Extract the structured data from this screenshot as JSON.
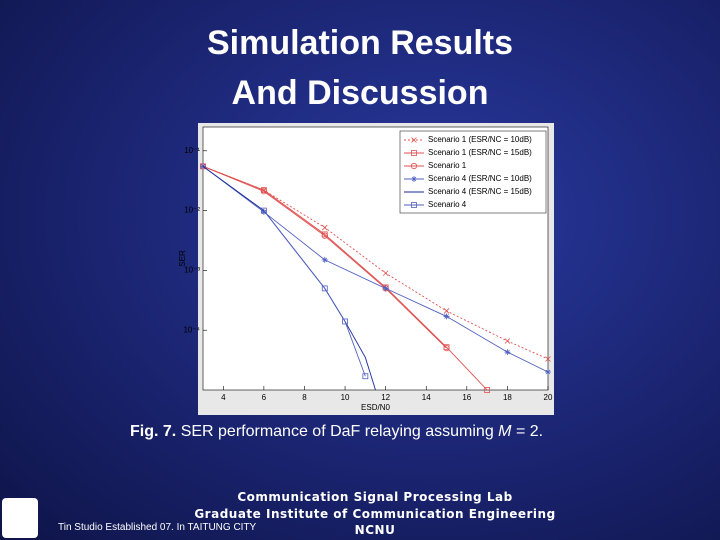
{
  "slide": {
    "title_line1": "Simulation Results",
    "title_line2": "And Discussion",
    "caption_label": "Fig. 7.",
    "caption_text": "SER performance of DaF relaying assuming",
    "caption_var": "M",
    "caption_end": "= 2.",
    "footer_lab": "Communication Signal Processing Lab",
    "footer_institute": "Graduate Institute of Communication Engineering",
    "footer_univ": "NCNU",
    "footer_studio": "Tin Studio Established 07. In TAITUNG CITY"
  },
  "chart_data": {
    "type": "line",
    "xlabel": "ESD/N0",
    "ylabel": "SER",
    "log_y": true,
    "legend": "top-right",
    "xlim": [
      3,
      20
    ],
    "xticks": [
      4,
      6,
      8,
      10,
      12,
      14,
      16,
      18,
      20
    ],
    "ylim": [
      1e-05,
      0.25
    ],
    "yticks": [
      {
        "value": 0.1,
        "label": "10⁻¹"
      },
      {
        "value": 0.01,
        "label": "10⁻²"
      },
      {
        "value": 0.001,
        "label": "10⁻³"
      },
      {
        "value": 0.0001,
        "label": "10⁻⁴"
      }
    ],
    "series": [
      {
        "name": "Scenario 1 (ESR/NC = 10dB)",
        "color": "#e05050",
        "dash": "2,2",
        "marker": "x",
        "x": [
          3,
          6,
          9,
          12,
          15,
          18,
          20
        ],
        "values": [
          0.055,
          0.022,
          0.0052,
          0.0009,
          0.00021,
          6.6e-05,
          3.3e-05
        ]
      },
      {
        "name": "Scenario 1 (ESR/NC = 15dB)",
        "color": "#e05050",
        "dash": "none",
        "marker": "square",
        "x": [
          3,
          6,
          9,
          12,
          15,
          17
        ],
        "values": [
          0.055,
          0.022,
          0.004,
          0.00052,
          5.2e-05,
          1e-05
        ]
      },
      {
        "name": "Scenario 1",
        "color": "#e05050",
        "dash": "none",
        "marker": "circle",
        "x": [
          3,
          6,
          9,
          12,
          15
        ],
        "values": [
          0.055,
          0.021,
          0.0038,
          0.0005,
          5e-05
        ]
      },
      {
        "name": "Scenario 4 (ESR/NC = 10dB)",
        "color": "#5060c0",
        "dash": "none",
        "marker": "star",
        "x": [
          3,
          6,
          9,
          12,
          15,
          18,
          20
        ],
        "values": [
          0.055,
          0.0095,
          0.0015,
          0.0005,
          0.00017,
          4.3e-05,
          2e-05
        ]
      },
      {
        "name": "Scenario 4 (ESR/NC = 15dB)",
        "color": "#1a2a9a",
        "dash": "none",
        "marker": "none",
        "x": [
          3,
          6,
          9,
          10,
          11,
          11.5
        ],
        "values": [
          0.055,
          0.01,
          0.0005,
          0.00014,
          3.5e-05,
          1e-05
        ]
      },
      {
        "name": "Scenario 4",
        "color": "#5060c0",
        "dash": "none",
        "marker": "square",
        "x": [
          6,
          9,
          10,
          11
        ],
        "values": [
          0.01,
          0.0005,
          0.00014,
          1.7e-05
        ]
      }
    ]
  }
}
